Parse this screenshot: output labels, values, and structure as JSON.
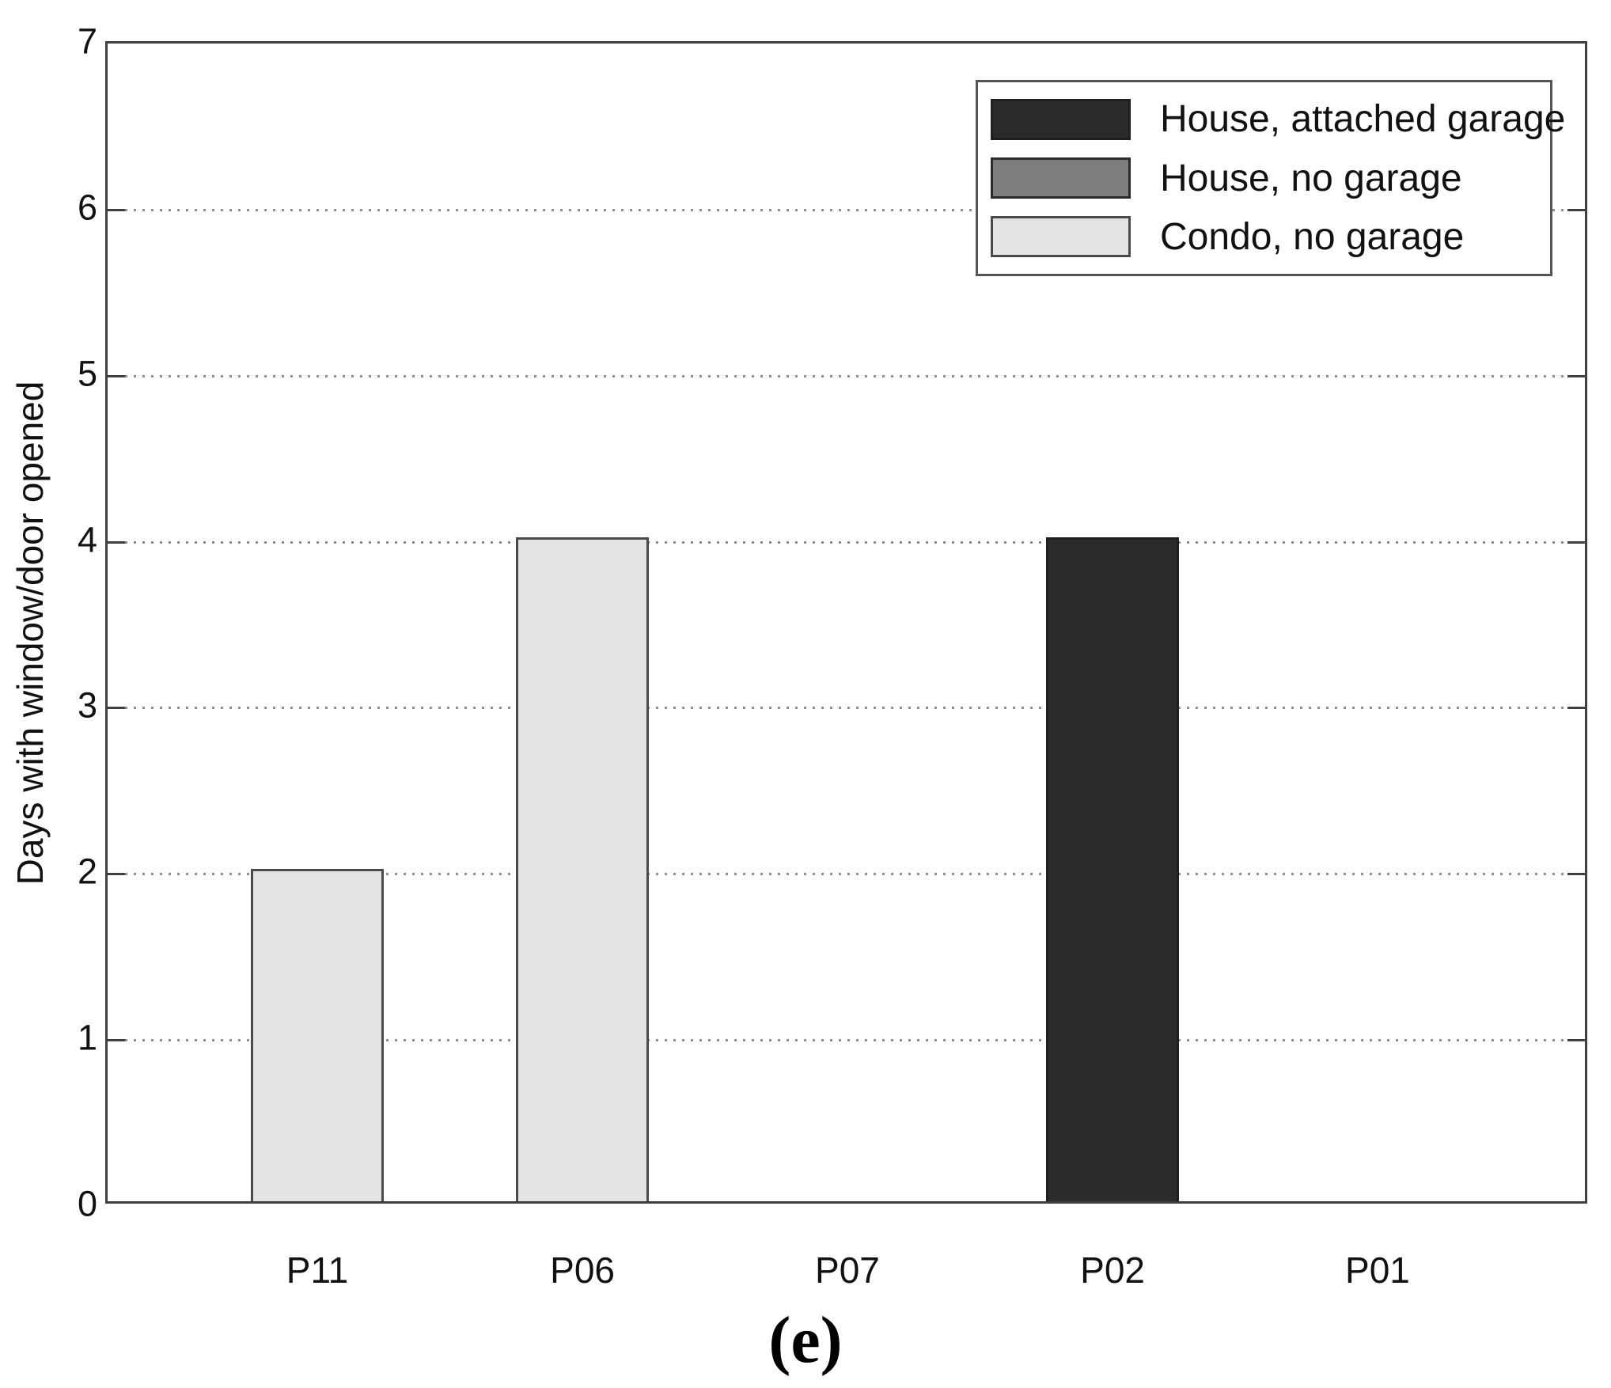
{
  "chart_data": {
    "type": "bar",
    "title": "",
    "categories": [
      "P11",
      "P06",
      "P07",
      "P02",
      "P01"
    ],
    "values": [
      2,
      4,
      0,
      4,
      0
    ],
    "bar_series": [
      "Condo, no garage",
      "Condo, no garage",
      null,
      "House, attached garage",
      null
    ],
    "ylabel": "Days with window/door opened",
    "xlabel": "",
    "ylim": [
      0,
      7
    ],
    "yticks": [
      0,
      1,
      2,
      3,
      4,
      5,
      6,
      7
    ],
    "grid": "horizontal-dotted",
    "legend_position": "top-right",
    "legend": [
      {
        "label": "House, attached garage",
        "color": "#2b2b2b",
        "border": "#1f1f1f"
      },
      {
        "label": "House, no garage",
        "color": "#7d7d7d",
        "border": "#2a2a2a"
      },
      {
        "label": "Condo, no garage",
        "color": "#e4e4e4",
        "border": "#4a4a4a"
      }
    ],
    "caption": "(e)"
  }
}
